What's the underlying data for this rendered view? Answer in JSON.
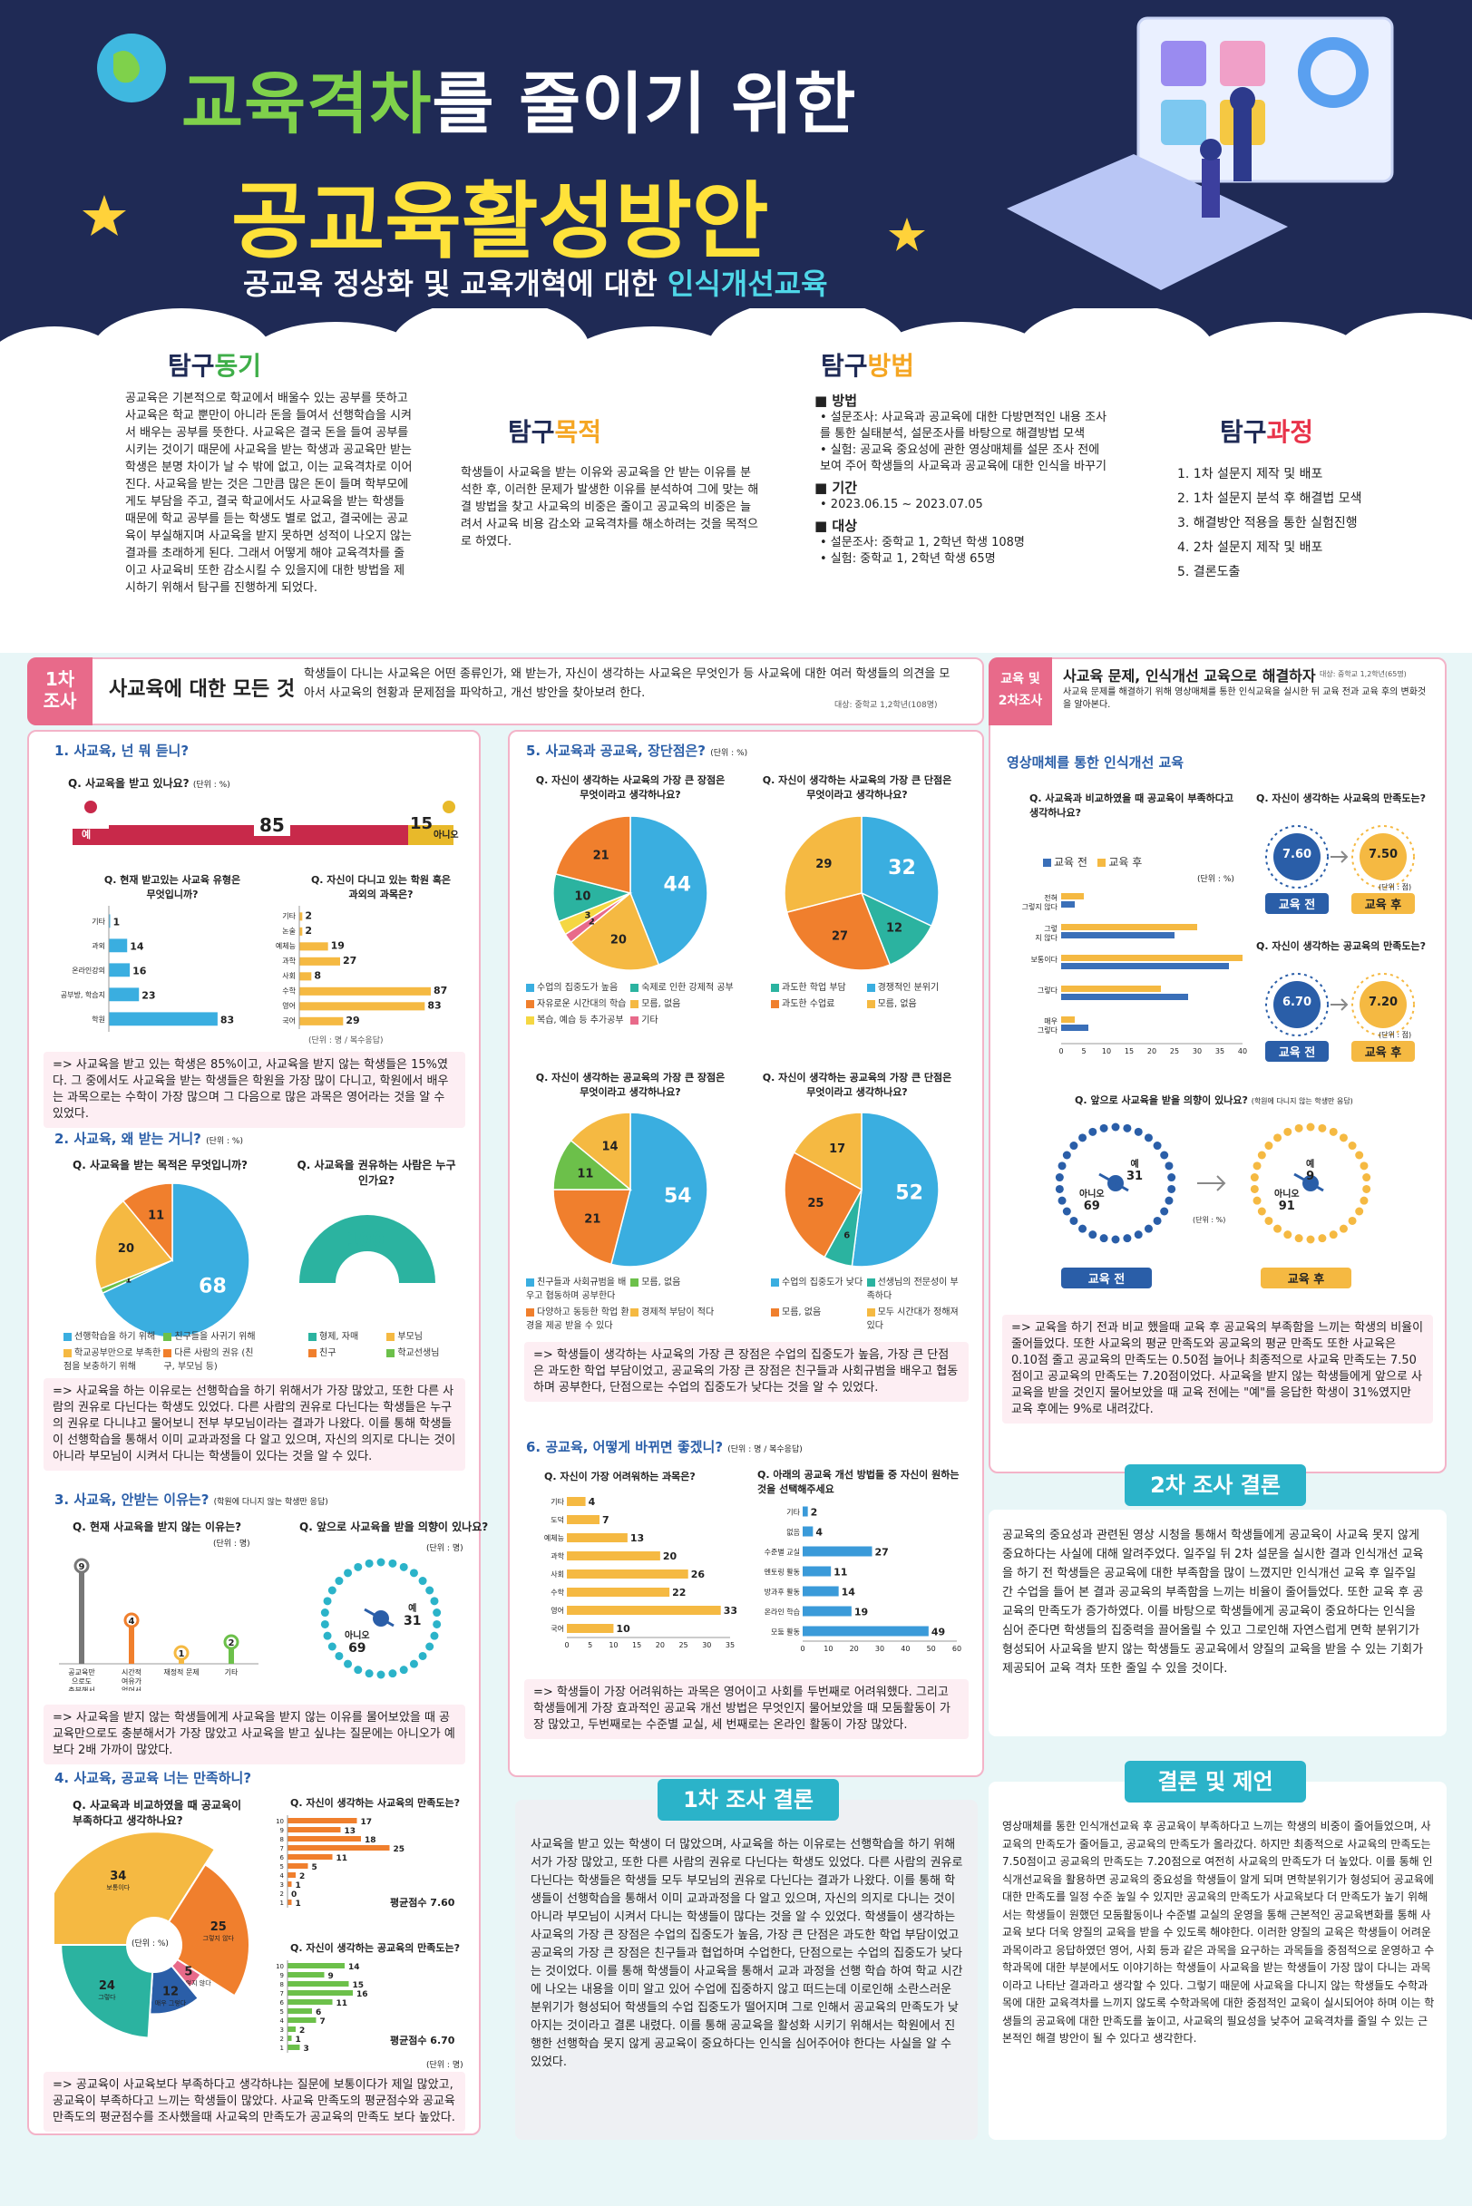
{
  "header": {
    "title_green": "교육격차",
    "title_rest": "를 줄이기 위한",
    "title_main": "공교육활성방안",
    "subtitle_plain": "공교육 정상화 및 교육개혁에 대한 ",
    "subtitle_accent": "인식개선교육"
  },
  "intro": {
    "motive": {
      "head1": "탐구",
      "head2": "동기",
      "text": "공교육은 기본적으로 학교에서 배울수 있는 공부를 뜻하고 사교육은 학교 뿐만이 아니라 돈을 들여서 선행학습을 시켜서 배우는 공부를 뜻한다. 사교육은 결국 돈을 들여 공부를 시키는 것이기 때문에 사교육을 받는 학생과 공교육만 받는 학생은 분명 차이가 날 수 밖에 없고, 이는 교육격차로 이어진다. 사교육을 받는 것은 그만큼 많은 돈이 들며 학부모에게도 부담을 주고, 결국 학교에서도 사교육을 받는 학생들 때문에 학교 공부를 듣는 학생도 별로 없고, 결국에는 공교육이 부실해지며 사교육을 받지 못하면 성적이 나오지 않는 결과를 초래하게 된다. 그래서 어떻게 해야 교육격차를 줄이고 사교육비 또한 감소시킬 수 있을지에 대한 방법을 제시하기 위해서 탐구를 진행하게 되었다."
    },
    "purpose": {
      "head1": "탐구",
      "head2": "목적",
      "text": "학생들이 사교육을 받는 이유와 공교육을 안 받는 이유를 분석한 후, 이러한 문제가 발생한 이유를 분석하여 그에 맞는 해결 방법을 찾고 사교육의 비중은 줄이고 공교육의 비중은 늘려서 사교육 비용 감소와 교육격차를 해소하려는 것을 목적으로 하였다."
    },
    "method": {
      "head1": "탐구",
      "head2": "방법",
      "items": [
        {
          "title": "방법",
          "lines": [
            "• 설문조사: 사교육과 공교육에 대한 다방면적인 내용 조사를 통한 실태분석, 설문조사를 바탕으로 해결방법 모색",
            "• 실험: 공교육 중요성에 관한 영상매체를 설문 조사 전에 보여 주어 학생들의 사교육과 공교육에 대한 인식을 바꾸기"
          ]
        },
        {
          "title": "기간",
          "lines": [
            "• 2023.06.15 ~ 2023.07.05"
          ]
        },
        {
          "title": "대상",
          "lines": [
            "• 설문조사: 중학교 1, 2학년 학생 108명",
            "• 실험: 중학교 1, 2학년 학생 65명"
          ]
        }
      ]
    },
    "process": {
      "head1": "탐구",
      "head2": "과정",
      "steps": [
        "1. 1차 설문지 제작 및 배포",
        "2. 1차 설문지 분석 후 해결법 모색",
        "3. 해결방안 적용을 통한 실험진행",
        "4. 2차 설문지 제작 및 배포",
        "5. 결론도출"
      ]
    }
  },
  "survey1": {
    "tag": "1차\n조사",
    "title": "사교육에 대한 모든 것",
    "desc": "학생들이 다니는 사교육은 어떤 종류인가, 왜 받는가, 자신이 생각하는 사교육은 무엇인가 등 사교육에 대한 여러 학생들의 의견을 모아서 사교육의 현황과 문제점을 파악하고, 개선 방안을 찾아보려 한다.",
    "target": "대상: 중학교 1,2학년(108명)",
    "s1": {
      "title": "1. 사교육, 넌 뭐 듣니?",
      "q1": "Q. 사교육을 받고 있나요?",
      "q1_unit": "(단위 : %)",
      "yes": "예",
      "no": "아니오",
      "yes_val": "85",
      "no_val": "15",
      "q2": "Q. 현재 받고있는 사교육 유형은 무엇입니까?",
      "q2_items": [
        {
          "label": "기타",
          "v": 1
        },
        {
          "label": "과외",
          "v": 14
        },
        {
          "label": "온라인강의",
          "v": 16
        },
        {
          "label": "공부방, 학습지",
          "v": 23
        },
        {
          "label": "학원",
          "v": 83
        }
      ],
      "q3": "Q. 자신이 다니고 있는 학원 혹은 과외의 과목은?",
      "q3_items": [
        {
          "label": "기타",
          "v": 2
        },
        {
          "label": "논술",
          "v": 2
        },
        {
          "label": "예체능",
          "v": 19
        },
        {
          "label": "과학",
          "v": 27
        },
        {
          "label": "사회",
          "v": 8
        },
        {
          "label": "수학",
          "v": 87
        },
        {
          "label": "영어",
          "v": 83
        },
        {
          "label": "국어",
          "v": 29
        }
      ],
      "unit": "(단위 : 명 / 복수응답)",
      "note": "=> 사교육을 받고 있는 학생은 85%이고, 사교육을 받지 않는 학생들은 15%였다. 그 중에서도 사교육을 받는 학생들은 학원을 가장 많이 다니고, 학원에서 배우는 과목으로는 수학이 가장 많으며 그 다음으로 많은 과목은 영어라는 것을 알 수 있었다."
    },
    "s2": {
      "title": "2. 사교육, 왜 받는 거니?",
      "unit": "(단위 : %)",
      "q1": "Q. 사교육을 받는 목적은 무엇입니까?",
      "q1_slices": [
        {
          "label": "선행학습을 하기 위해",
          "v": 68
        },
        {
          "label": "친구들을 사귀기 위해",
          "v": 1
        },
        {
          "label": "학교공부만으로 부족한 점을 보충하기 위해",
          "v": 20
        },
        {
          "label": "다른 사람의 권유 (친구, 부모님 등)",
          "v": 11
        }
      ],
      "q2": "Q. 사교육을 권유하는 사람은 누구인가요?",
      "q2_val": "100",
      "q2_legend": [
        "형제, 자매",
        "부모님",
        "친구",
        "학교선생님"
      ],
      "note": "=> 사교육을 하는 이유로는 선행학습을 하기 위해서가 가장 많았고, 또한 다른 사람의 권유로 다닌다는 학생도 있었다. 다른 사람의 권유로 다닌다는 학생들은 누구의 권유로 다니냐고 물어보니 전부 부모님이라는 결과가 나왔다. 이를 통해 학생들이 선행학습을 통해서 이미 교과과정을 다 알고 있으며, 자신의 의지로 다니는 것이 아니라 부모님이 시켜서 다니는 학생들이 있다는 것을 알 수 있다."
    },
    "s3": {
      "title": "3. 사교육, 안받는 이유는?",
      "subnote": "(학원에 다니지 않는 학생만 응답)",
      "q1": "Q. 현재 사교육을 받지 않는 이유는?",
      "q1_unit": "(단위 : 명)",
      "q1_items": [
        {
          "label": "공교육만으로도 충분해서",
          "v": 9
        },
        {
          "label": "시간적 여유가 없어서",
          "v": 4
        },
        {
          "label": "재정적 문제",
          "v": 1
        },
        {
          "label": "기타",
          "v": 2
        }
      ],
      "q2": "Q. 앞으로 사교육을 받을 의향이 있나요?",
      "q2_unit": "(단위 : 명)",
      "q2_yes": "예",
      "q2_yes_val": "31",
      "q2_no": "아니오",
      "q2_no_val": "69",
      "note": "=> 사교육을 받지 않는 학생들에게 사교육을 받지 않는 이유를 물어보았을 때 공교육만으로도 충분해서가 가장 많았고 사교육을 받고 싶냐는 질문에는 아니오가 예보다 2배 가까이 많았다."
    },
    "s4": {
      "title": "4. 사교육, 공교육 너는 만족하니?",
      "q1": "Q. 사교육과 비교하였을 때 공교육이 부족하다고 생각하나요?",
      "q1_unit": "(단위 : %)",
      "q1_slices": [
        {
          "label": "보통이다",
          "v": 34
        },
        {
          "label": "그렇지 않다",
          "v": 25
        },
        {
          "label": "전혀 그렇지 않다",
          "v": 5
        },
        {
          "label": "매우 그렇다",
          "v": 12
        },
        {
          "label": "그렇다",
          "v": 24
        }
      ],
      "q2": "Q. 자신이 생각하는 사교육의 만족도는?",
      "q2_vals": [
        17,
        13,
        18,
        25,
        11,
        5,
        2,
        1,
        0,
        1
      ],
      "q2_avg": "평균점수 7.60",
      "q3": "Q. 자신이 생각하는 공교육의 만족도는?",
      "q3_vals": [
        14,
        9,
        15,
        16,
        11,
        6,
        7,
        2,
        1,
        3
      ],
      "q3_avg": "평균점수 6.70",
      "unit": "(단위 : 명)",
      "note": "=> 공교육이 사교육보다 부족하다고 생각하냐는 질문에 보통이다가 제일 많았고, 공교육이 부족하다고 느끼는 학생들이 많았다. 사교육 만족도의 평균점수와 공교육 만족도의 평균점수를 조사했을때 사교육의 만족도가 공교육의 만족도 보다 높았다."
    },
    "s5": {
      "title": "5. 사교육과 공교육, 장단점은?",
      "unit": "(단위 : %)",
      "p1": {
        "q": "Q. 자신이 생각하는 사교육의 가장 큰 장점은 무엇이라고 생각하나요?",
        "slices": [
          44,
          20,
          2,
          3,
          10,
          21
        ],
        "legend": [
          "수업의 집중도가 높음",
          "숙제로 인한 강제적 공부",
          "자유로운 시간대의 학습",
          "모름, 없음",
          "복습, 예습 등 추가공부",
          "기타"
        ]
      },
      "p2": {
        "q": "Q. 자신이 생각하는 사교육의 가장 큰 단점은 무엇이라고 생각하나요?",
        "slices": [
          32,
          12,
          27,
          29
        ],
        "legend": [
          "과도한 학업 부담",
          "경쟁적인 분위기",
          "과도한 수업료",
          "모름, 없음"
        ]
      },
      "p3": {
        "q": "Q. 자신이 생각하는 공교육의 가장 큰 장점은 무엇이라고 생각하나요?",
        "slices": [
          54,
          21,
          11,
          14
        ],
        "legend": [
          "친구들과 사회규범을 배우고 협동하며 공부한다",
          "모름, 없음",
          "다양하고 동등한 학업 환경을 제공 받을 수 있다",
          "경제적 부담이 적다"
        ]
      },
      "p4": {
        "q": "Q. 자신이 생각하는 공교육의 가장 큰 단점은 무엇이라고 생각하나요?",
        "slices": [
          52,
          6,
          25,
          17
        ],
        "legend": [
          "수업의 집중도가 낮다",
          "선생님의 전문성이 부족하다",
          "모름, 없음",
          "모두 시간대가 정해져 있다"
        ]
      },
      "note": "=> 학생들이 생각하는 사교육의 가장 큰 장점은 수업의 집중도가 높음, 가장 큰 단점은 과도한 학업 부담이었고, 공교육의 가장 큰 장점은 친구들과 사회규범을 배우고 협동하며 공부한다, 단점으로는 수업의 집중도가 낮다는 것을 알 수 있었다."
    },
    "s6": {
      "title": "6. 공교육, 어떻게 바뀌면 좋겠니?",
      "unit": "(단위 : 명 / 복수응답)",
      "q1": "Q. 자신이 가장 어려워하는 과목은?",
      "q1_items": [
        {
          "label": "기타",
          "v": 4
        },
        {
          "label": "도덕",
          "v": 7
        },
        {
          "label": "예체능",
          "v": 13
        },
        {
          "label": "과학",
          "v": 20
        },
        {
          "label": "사회",
          "v": 26
        },
        {
          "label": "수학",
          "v": 22
        },
        {
          "label": "영어",
          "v": 33
        },
        {
          "label": "국어",
          "v": 10
        }
      ],
      "q2": "Q. 아래의 공교육 개선 방법들 중 자신이 원하는 것을 선택해주세요",
      "q2_items": [
        {
          "label": "기타",
          "v": 2
        },
        {
          "label": "없음",
          "v": 4
        },
        {
          "label": "수준별 교실",
          "v": 27
        },
        {
          "label": "멘토링 활동",
          "v": 11
        },
        {
          "label": "방과후 활동",
          "v": 14
        },
        {
          "label": "온라인 학습",
          "v": 19
        },
        {
          "label": "모둠 활동",
          "v": 49
        }
      ],
      "note": "=> 학생들이 가장 어려워하는 과목은 영어이고 사회를 두번째로 어려워했다. 그리고 학생들에게 가장 효과적인 공교육 개선 방법은 무엇인지 물어보았을 때 모둠활동이 가장 많았고, 두번째로는 수준별 교실, 세 번째로는 온라인 활동이 가장 많았다."
    }
  },
  "result1": {
    "title": "1차 조사 결론",
    "text": "사교육을 받고 있는 학생이 더 많았으며, 사교육을 하는 이유로는 선행학습을 하기 위해서가 가장 많았고, 또한 다른 사람의 권유로 다닌다는 학생도 있었다. 다른 사람의 권유로 다닌다는 학생들은 학생들 모두 부모님의 권유로 다닌다는 결과가 나왔다. 이를 통해 학생들이 선행학습을 통해서 이미 교과과정을 다 알고 있으며, 자신의 의지로 다니는 것이 아니라 부모님이 시켜서 다니는 학생들이 많다는 것을 알 수 있었다. 학생들이 생각하는 사교육의 가장 큰 장점은 수업의 집중도가 높음, 가장 큰 단점은 과도한 학업 부담이었고 공교육의 가장 큰 장점은 친구들과 협업하며 수업한다, 단점으로는 수업의 집중도가 낮다는 것이었다. 이를 통해 학생들이 사교육을 통해서 교과 과정을 선행 학습 하여 학교 시간에 나오는 내용을 이미 알고 있어 수업에 집중하지 않고 떠드는데 이로인해 소란스러운 분위기가 형성되어 학생들의 수업 집중도가 떨어지며 그로 인해서 공교육의 만족도가 낮아지는 것이라고 결론 내렸다. 이를 통해 공교육을 활성화 시키기 위해서는 학원에서 진행한 선행학습 못지 않게 공교육이 중요하다는 인식을 심어주어야 한다는 사실을 알 수 있었다."
  },
  "survey2": {
    "tag": "교육 및\n2차조사",
    "title": "사교육 문제, 인식개선 교육으로 해결하자",
    "target": "대상: 중학교 1,2학년(65명)",
    "desc": "사교육 문제를 해결하기 위해 영상매체를 통한 인식교육을 실시한 뒤 교육 전과 교육 후의 변화것을 알아본다.",
    "section": "영상매체를 통한 인식개선 교육",
    "q1": "Q. 사교육과 비교하였을 때 공교육이 부족하다고 생각하나요?",
    "before": "교육 전",
    "after": "교육 후",
    "unit_pct": "(단위 : %)",
    "q1_cats": [
      "전혀 그렇지 않다",
      "그렇지 않다",
      "보통이다",
      "그렇다",
      "매우 그렇다"
    ],
    "q1_before": [
      3,
      25,
      37,
      28,
      6
    ],
    "q1_after": [
      5,
      30,
      40,
      22,
      3
    ],
    "q2": "Q. 자신이 생각하는 사교육의 만족도는?",
    "q2_before": "7.60",
    "q2_after": "7.50",
    "unit_pt": "(단위 : 점)",
    "q3": "Q. 자신이 생각하는 공교육의 만족도는?",
    "q3_before": "6.70",
    "q3_after": "7.20",
    "q4": "Q. 앞으로 사교육을 받을 의향이 있나요?",
    "q4_note": "(학원에 다니지 않는 학생만 응답)",
    "unit4": "(단위 : %)",
    "q4_yes": "예",
    "q4_no": "아니오",
    "q4_before_yes": "31",
    "q4_before_no": "69",
    "q4_after_yes": "9",
    "q4_after_no": "91",
    "note": "=> 교육을 하기 전과 비교 했을때 교육 후 공교육의 부족함을 느끼는 학생의 비율이 줄어들었다. 또한 사교육의 평균 만족도와 공교육의 평균 만족도 또한 사교육은 0.10점 줄고 공교육의 만족도는 0.50점 늘어나 최종적으로 사교육 만족도는 7.50점이고 공교육의 만족도는 7.20점이었다. 사교육을 받지 않는 학생들에게 앞으로 사교육을 받을 것인지 물어보았을 때 교육 전에는 \"예\"를 응답한 학생이 31%였지만 교육 후에는 9%로 내려갔다."
  },
  "result2": {
    "title": "2차 조사 결론",
    "text": "공교육의 중요성과 관련된 영상 시청을 통해서 학생들에게 공교육이 사교육 못지 않게 중요하다는 사실에 대해 알려주었다. 일주일 뒤 2차 설문을 실시한 결과 인식개선 교육을 하기 전 학생들은 공교육에 대한 부족함을 많이 느꼈지만 인식개선 교육 후 일주일 간 수업을 들어 본 결과 공교육의 부족함을 느끼는 비율이 줄어들었다. 또한 교육 후 공교육의 만족도가 증가하였다. 이를 바탕으로 학생들에게 공교육이 중요하다는 인식을 심어 준다면 학생들의 집중력을 끌어올릴 수 있고 그로인해 자연스럽게 면학 분위기가 형성되어 사교육을 받지 않는 학생들도 공교육에서 양질의 교육을 받을 수 있는 기회가 제공되어 교육 격차 또한 줄일 수 있을 것이다."
  },
  "conclusion": {
    "title": "결론 및 제언",
    "text": "영상매체를 통한 인식개선교육 후 공교육이 부족하다고 느끼는 학생의 비중이 줄어들었으며, 사교육의 만족도가 줄어들고, 공교육의 만족도가 올라갔다. 하지만 최종적으로 사교육의 만족도는 7.50점이고 공교육의 만족도는 7.20점으로 여전히 사교육의 만족도가 더 높았다. 이를 통해 인식개선교육을 활용하면 공교육의 중요성을 학생들이 알게 되며 면학분위기가 형성되어 공교육에 대한 만족도를 일정 수준 높일 수 있지만 공교육의 만족도가 사교육보다 더 만족도가 높기 위해서는 학생들이 원했던 모둠활동이나 수준별 교실의 운영을 통해 근본적인 공교육변화를 통해 사교육 보다 더욱 양질의 교육을 받을 수 있도록 해야한다. 이러한 양질의 교육은 학생들이 어려운 과목이라고 응답하였던 영어, 사회 등과 같은 과목을 요구하는 과목들을 중점적으로 운영하고 수학과목에 대한 부분에서도 이야기하는 학생들이 사교육을 받는 학생들이 가장 많이 다니는 과목이라고 나타난 결과라고 생각할 수 있다. 그렇기 때문에 사교육을 다니지 않는 학생들도 수학과목에 대한 교육격차를 느끼지 않도록 수학과목에 대한 중점적인 교육이 실시되어야 하며 이는 학생들의 공교육에 대한 만족도를 높이고, 사교육의 필요성을 낮추어 교육격차를 줄일 수 있는 근본적인 해결 방안이 될 수 있다고 생각한다."
  },
  "colors": {
    "navy": "#1f2a55",
    "pink": "#e86a8a",
    "blue": "#3a9ad9",
    "orange": "#f07f2d",
    "yellow": "#f5b942",
    "teal": "#2bb3c9",
    "green": "#6cc04a"
  }
}
